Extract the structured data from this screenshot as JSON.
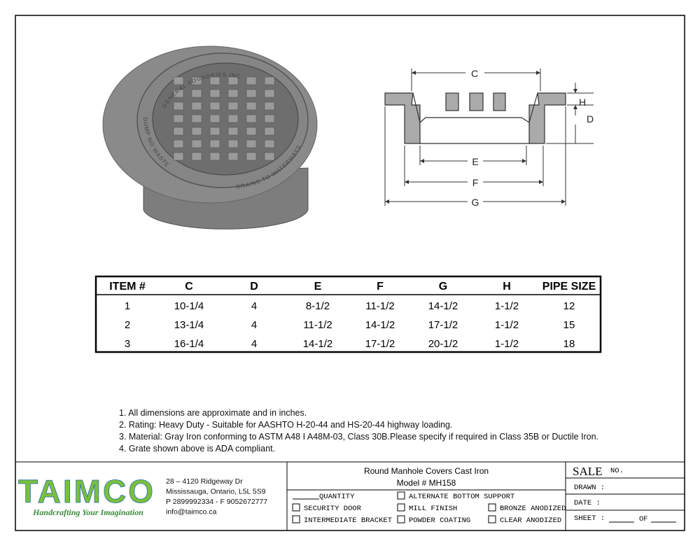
{
  "diagram": {
    "labels": {
      "c": "C",
      "h": "H",
      "d": "D",
      "e": "E",
      "f": "F",
      "g": "G"
    },
    "emboss": [
      "GENERAL FOUNDRIES INC",
      "DUMP NO WASTE",
      "DRAINS TO WATERWAYS"
    ]
  },
  "table": {
    "header": [
      "ITEM #",
      "C",
      "D",
      "E",
      "F",
      "G",
      "H",
      "PIPE SIZE"
    ],
    "rows": [
      [
        "1",
        "10-1/4",
        "4",
        "8-1/2",
        "11-1/2",
        "14-1/2",
        "1-1/2",
        "12"
      ],
      [
        "2",
        "13-1/4",
        "4",
        "11-1/2",
        "14-1/2",
        "17-1/2",
        "1-1/2",
        "15"
      ],
      [
        "3",
        "16-1/4",
        "4",
        "14-1/2",
        "17-1/2",
        "20-1/2",
        "1-1/2",
        "18"
      ]
    ]
  },
  "notes": [
    "1. All dimensions are approximate and in inches.",
    "2. Rating: Heavy Duty - Suitable for AASHTO H-20-44 and HS-20-44 highway loading.",
    "3. Material: Gray Iron conforming to ASTM A48 I A48M-03, Class 30B.Please specify if required in Class 35B or Ductile Iron.",
    "4. Grate shown above is ADA compliant."
  ],
  "title_block": {
    "logo": "TAIMCO",
    "tagline": "Handcrafting Your Imagination",
    "address": [
      "28 – 4120 Ridgeway Dr",
      "Mississauga, Ontario, L5L 5S9",
      "P 2899992334 - F 9052672777",
      "info@taimco.ca"
    ],
    "title": "Round Manhole Covers Cast Iron",
    "model": "Model # MH158",
    "options": [
      "QUANTITY",
      "ALTERNATE BOTTOM SUPPORT",
      "SECURITY DOOR",
      "MILL FINISH",
      "BRONZE ANODIZED",
      "INTERMEDIATE BRACKET",
      "POWDER COATING",
      "CLEAR ANODIZED"
    ],
    "sale": "SALE",
    "no": "NO.",
    "drawn": "DRAWN :",
    "date": "DATE :",
    "sheet": "SHEET :",
    "of": "OF"
  }
}
